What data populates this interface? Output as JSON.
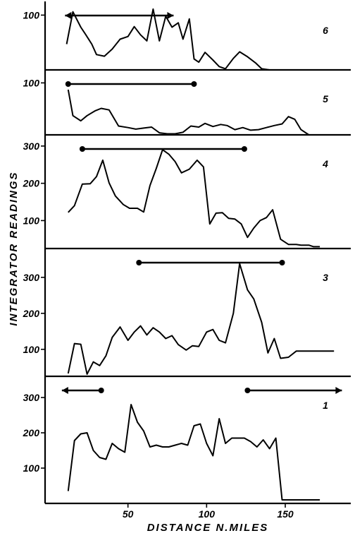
{
  "chart_data": {
    "type": "line",
    "title": "",
    "xlabel": "DISTANCE N.MILES",
    "ylabel": "INTEGRATOR READINGS",
    "xlim": [
      0,
      186
    ],
    "x_ticks": [
      "50",
      "100",
      "150"
    ],
    "grid": false,
    "panels": [
      {
        "label": "6",
        "ylim": [
          0,
          125
        ],
        "y_ticks": [
          {
            "v": 100,
            "t": "100"
          }
        ],
        "range_marker": {
          "x_from": 10,
          "x_to": 79,
          "style": "arrows-both"
        },
        "x": [
          11,
          15,
          20,
          23,
          27,
          30,
          35,
          40,
          45,
          50,
          54,
          58,
          62,
          66,
          70,
          74,
          78,
          82,
          85,
          89,
          92,
          95,
          99,
          104,
          108,
          112,
          117,
          121,
          126,
          131,
          135,
          140,
          147,
          155
        ],
        "values": [
          47,
          106,
          78,
          65,
          47,
          28,
          25,
          38,
          56,
          61,
          79,
          64,
          53,
          111,
          53,
          98,
          78,
          86,
          56,
          93,
          20,
          14,
          32,
          18,
          6,
          2,
          21,
          33,
          24,
          13,
          2,
          0,
          0,
          0
        ]
      },
      {
        "label": "5",
        "ylim": [
          0,
          125
        ],
        "y_ticks": [
          {
            "v": 100,
            "t": "100"
          }
        ],
        "range_marker": {
          "x_from": 12,
          "x_to": 92,
          "style": "dots"
        },
        "x": [
          12,
          15,
          20,
          24,
          29,
          33,
          38,
          44,
          50,
          55,
          60,
          65,
          70,
          75,
          80,
          85,
          90,
          95,
          99,
          104,
          109,
          113,
          118,
          123,
          128,
          133,
          138,
          143,
          148,
          152,
          156,
          160,
          165
        ],
        "values": [
          87,
          37,
          27,
          37,
          46,
          51,
          48,
          17,
          14,
          11,
          13,
          15,
          4,
          2,
          2,
          5,
          17,
          15,
          22,
          16,
          20,
          18,
          10,
          14,
          9,
          10,
          14,
          18,
          21,
          35,
          30,
          10,
          0
        ]
      },
      {
        "label": "4",
        "ylim": [
          25,
          330
        ],
        "y_ticks": [
          {
            "v": 100,
            "t": "100"
          },
          {
            "v": 200,
            "t": "200"
          },
          {
            "v": 300,
            "t": "300"
          }
        ],
        "range_marker": {
          "x_from": 21,
          "x_to": 124,
          "style": "dots"
        },
        "x": [
          12,
          16,
          21,
          26,
          30,
          34,
          38,
          42,
          47,
          51,
          56,
          60,
          64,
          68,
          72,
          76,
          80,
          84,
          89,
          94,
          98,
          102,
          106,
          110,
          114,
          118,
          122,
          126,
          130,
          134,
          138,
          142,
          147,
          152,
          157,
          160,
          165,
          168,
          172
        ],
        "values": [
          122,
          140,
          198,
          199,
          218,
          262,
          201,
          166,
          143,
          133,
          133,
          123,
          194,
          240,
          290,
          278,
          258,
          228,
          238,
          262,
          244,
          91,
          120,
          121,
          106,
          104,
          91,
          55,
          80,
          100,
          108,
          129,
          50,
          36,
          36,
          34,
          34,
          30,
          30
        ]
      },
      {
        "label": "3",
        "ylim": [
          25,
          380
        ],
        "y_ticks": [
          {
            "v": 100,
            "t": "100"
          },
          {
            "v": 200,
            "t": "200"
          },
          {
            "v": 300,
            "t": "300"
          }
        ],
        "range_marker": {
          "x_from": 57,
          "x_to": 148,
          "style": "dots"
        },
        "x": [
          12,
          16,
          20,
          24,
          28,
          32,
          36,
          40,
          45,
          50,
          54,
          58,
          62,
          66,
          70,
          74,
          78,
          82,
          87,
          91,
          95,
          100,
          104,
          108,
          112,
          117,
          121,
          126,
          130,
          135,
          139,
          143,
          147,
          152,
          157,
          162,
          167,
          172,
          177,
          181
        ],
        "values": [
          33,
          116,
          114,
          31,
          65,
          55,
          82,
          133,
          162,
          125,
          148,
          165,
          140,
          160,
          148,
          130,
          138,
          113,
          98,
          110,
          108,
          148,
          155,
          125,
          118,
          200,
          338,
          265,
          240,
          175,
          90,
          130,
          75,
          78,
          95,
          95,
          95,
          95,
          95,
          95
        ]
      },
      {
        "label": "1",
        "ylim": [
          0,
          360
        ],
        "y_ticks": [
          {
            "v": 100,
            "t": "100"
          },
          {
            "v": 200,
            "t": "200"
          },
          {
            "v": 300,
            "t": "300"
          }
        ],
        "range_marker": [
          {
            "x_from": 8,
            "x_to": 33,
            "style": "arrow-left"
          },
          {
            "x_from": 126,
            "x_to": 186,
            "style": "arrow-right"
          }
        ],
        "x": [
          12,
          16,
          20,
          24,
          28,
          32,
          36,
          40,
          44,
          48,
          52,
          56,
          60,
          64,
          68,
          72,
          76,
          80,
          84,
          88,
          92,
          96,
          100,
          104,
          108,
          112,
          116,
          120,
          124,
          128,
          132,
          136,
          140,
          144,
          148,
          152,
          156,
          160,
          164,
          168,
          172
        ],
        "values": [
          35,
          178,
          197,
          200,
          150,
          130,
          125,
          170,
          155,
          145,
          280,
          230,
          205,
          160,
          165,
          160,
          160,
          165,
          170,
          165,
          220,
          225,
          170,
          135,
          240,
          170,
          185,
          185,
          185,
          175,
          160,
          180,
          155,
          185,
          10,
          10,
          10,
          10,
          10,
          10,
          10
        ]
      }
    ]
  }
}
